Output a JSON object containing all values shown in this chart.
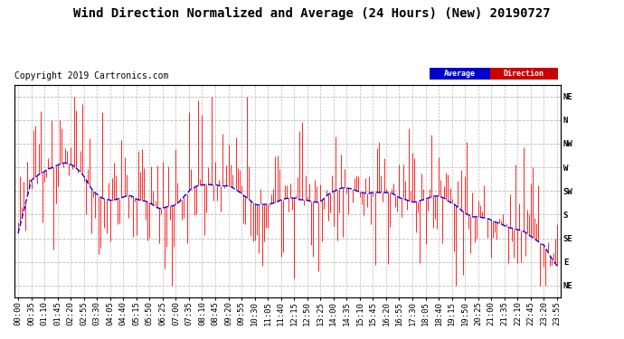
{
  "title": "Wind Direction Normalized and Average (24 Hours) (New) 20190727",
  "copyright": "Copyright 2019 Cartronics.com",
  "background_color": "#ffffff",
  "plot_bg_color": "#ffffff",
  "grid_color": "#bbbbbb",
  "y_labels": [
    "NE",
    "N",
    "NW",
    "W",
    "SW",
    "S",
    "SE",
    "E",
    "NE"
  ],
  "y_values": [
    8,
    7,
    6,
    5,
    4,
    3,
    2,
    1,
    0
  ],
  "ylim": [
    -0.5,
    8.5
  ],
  "legend_average_bg": "#0000cc",
  "legend_direction_bg": "#cc0000",
  "legend_text_color": "#ffffff",
  "bar_color": "#ff0000",
  "avg_color": "#0000ff",
  "title_fontsize": 10,
  "copyright_fontsize": 7,
  "tick_fontsize": 6.5
}
